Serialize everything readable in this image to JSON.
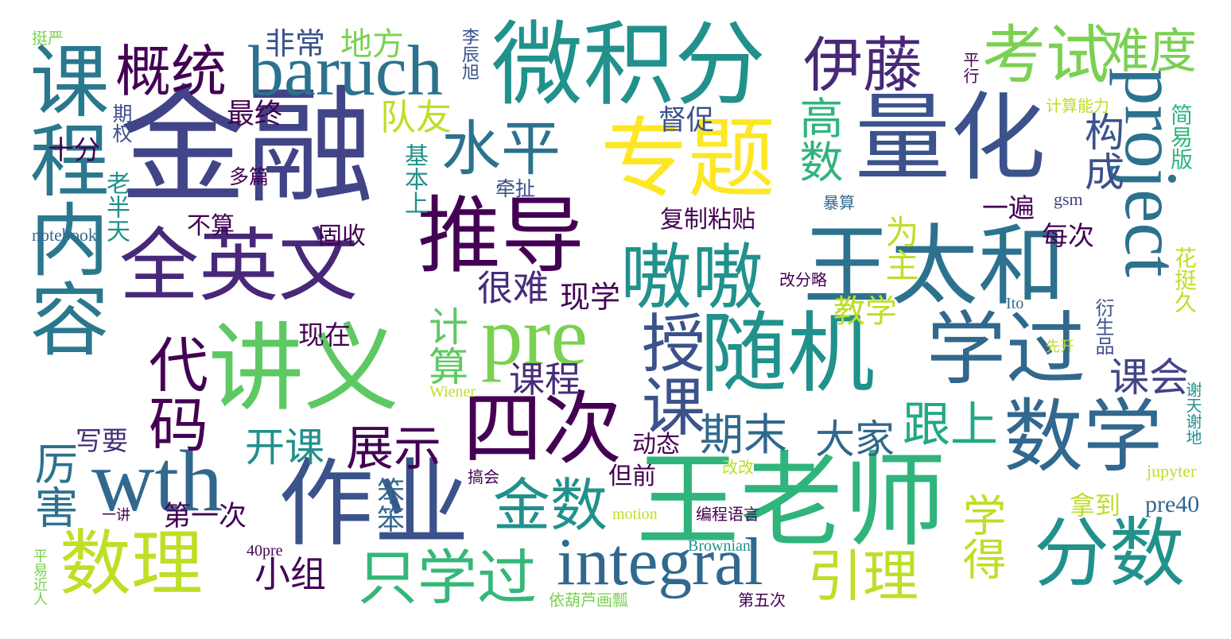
{
  "words": [
    {
      "text": "金融",
      "color": "#414487"
    },
    {
      "text": "量化",
      "color": "#3b528b"
    },
    {
      "text": "王老师",
      "color": "#2fb47c"
    },
    {
      "text": "微积分",
      "color": "#21918c"
    },
    {
      "text": "专题",
      "color": "#fde725"
    },
    {
      "text": "讲义",
      "color": "#5ec962"
    },
    {
      "text": "作业",
      "color": "#3b528b"
    },
    {
      "text": "推导",
      "color": "#440154"
    },
    {
      "text": "随机",
      "color": "#21918c"
    },
    {
      "text": "全英文",
      "color": "#482878"
    },
    {
      "text": "pre",
      "color": "#7ad151"
    },
    {
      "text": "project",
      "color": "#2c728e"
    },
    {
      "text": "wth",
      "color": "#31688e"
    },
    {
      "text": "数学",
      "color": "#31688e"
    },
    {
      "text": "分数",
      "color": "#21918c"
    },
    {
      "text": "课程内容",
      "color": "#2a788e"
    },
    {
      "text": "baruch",
      "color": "#2c728e"
    },
    {
      "text": "考试",
      "color": "#7ad151"
    },
    {
      "text": "王太和",
      "color": "#2c728e"
    },
    {
      "text": "数理",
      "color": "#bddf26"
    },
    {
      "text": "四次",
      "color": "#440154"
    },
    {
      "text": "integral",
      "color": "#31688e"
    },
    {
      "text": "学过",
      "color": "#31688e"
    },
    {
      "text": "嗷嗷",
      "color": "#21918c"
    },
    {
      "text": "伊藤",
      "color": "#482878"
    },
    {
      "text": "授课",
      "color": "#3b528b"
    },
    {
      "text": "水平",
      "color": "#2c728e"
    },
    {
      "text": "代码",
      "color": "#440154"
    },
    {
      "text": "只学过",
      "color": "#35b779"
    },
    {
      "text": "金数",
      "color": "#21918c"
    },
    {
      "text": "概统",
      "color": "#440154"
    },
    {
      "text": "引理",
      "color": "#bddf26"
    },
    {
      "text": "难度",
      "color": "#7ad151"
    },
    {
      "text": "跟上",
      "color": "#22a884"
    },
    {
      "text": "展示",
      "color": "#440154"
    },
    {
      "text": "期末",
      "color": "#31688e"
    },
    {
      "text": "大家",
      "color": "#31688e"
    },
    {
      "text": "厉害",
      "color": "#2c728e"
    },
    {
      "text": "学得",
      "color": "#bddf26"
    },
    {
      "text": "高数",
      "color": "#2fb47c"
    },
    {
      "text": "构成",
      "color": "#3b528b"
    },
    {
      "text": "计算",
      "color": "#5ec962"
    },
    {
      "text": "开课",
      "color": "#21918c"
    },
    {
      "text": "课会",
      "color": "#414487"
    },
    {
      "text": "很难",
      "color": "#472c7a"
    },
    {
      "text": "课程",
      "color": "#472c7a"
    },
    {
      "text": "队友",
      "color": "#bddf26"
    },
    {
      "text": "小组",
      "color": "#440154"
    },
    {
      "text": "地方",
      "color": "#7ad151"
    },
    {
      "text": "非常",
      "color": "#3b528b"
    },
    {
      "text": "教学",
      "color": "#bddf26"
    },
    {
      "text": "现学",
      "color": "#440154"
    },
    {
      "text": "为主",
      "color": "#bddf26"
    },
    {
      "text": "拿到",
      "color": "#bddf26"
    },
    {
      "text": "督促",
      "color": "#3b528b"
    },
    {
      "text": "笨笨",
      "color": "#31688e"
    },
    {
      "text": "第一次",
      "color": "#440154"
    },
    {
      "text": "最终",
      "color": "#440154"
    },
    {
      "text": "现在",
      "color": "#440154"
    },
    {
      "text": "写要",
      "color": "#472c7a"
    },
    {
      "text": "十分",
      "color": "#440154"
    },
    {
      "text": "每次",
      "color": "#440154"
    },
    {
      "text": "一遍",
      "color": "#440154"
    },
    {
      "text": "不算",
      "color": "#440154"
    },
    {
      "text": "固收",
      "color": "#440154"
    },
    {
      "text": "复制粘贴",
      "color": "#440154"
    },
    {
      "text": "动态",
      "color": "#440154"
    },
    {
      "text": "但前",
      "color": "#440154"
    },
    {
      "text": "多篇",
      "color": "#440154"
    },
    {
      "text": "牵扯",
      "color": "#3b528b"
    },
    {
      "text": "pre40",
      "color": "#31688e"
    },
    {
      "text": "基本上",
      "color": "#21918c"
    },
    {
      "text": "老半天",
      "color": "#21918c"
    },
    {
      "text": "期权",
      "color": "#3b528b"
    },
    {
      "text": "李辰旭",
      "color": "#3b528b"
    },
    {
      "text": "平行",
      "color": "#440154"
    },
    {
      "text": "简易版",
      "color": "#2fb47c"
    },
    {
      "text": "计算能力",
      "color": "#bddf26"
    },
    {
      "text": "花挺久",
      "color": "#bddf26"
    },
    {
      "text": "衍生品",
      "color": "#3b528b"
    },
    {
      "text": "改分略",
      "color": "#440154"
    },
    {
      "text": "gsm",
      "color": "#414487"
    },
    {
      "text": "暴算",
      "color": "#31688e"
    },
    {
      "text": "notebook",
      "color": "#31688e"
    },
    {
      "text": "挺严",
      "color": "#7ad151"
    },
    {
      "text": "Wiener",
      "color": "#bddf26"
    },
    {
      "text": "先开",
      "color": "#bddf26"
    },
    {
      "text": "Ito",
      "color": "#31688e"
    },
    {
      "text": "改改",
      "color": "#bddf26"
    },
    {
      "text": "jupyter",
      "color": "#bddf26"
    },
    {
      "text": "谢天谢地",
      "color": "#21918c"
    },
    {
      "text": "搞会",
      "color": "#440154"
    },
    {
      "text": "motion",
      "color": "#bddf26"
    },
    {
      "text": "编程语言",
      "color": "#440154"
    },
    {
      "text": "一讲",
      "color": "#440154"
    },
    {
      "text": "40pre",
      "color": "#440154"
    },
    {
      "text": "Brownian",
      "color": "#21918c"
    },
    {
      "text": "平易近人",
      "color": "#7ad151"
    },
    {
      "text": "依葫芦画瓢",
      "color": "#7ad151"
    },
    {
      "text": "第五次",
      "color": "#440154"
    }
  ]
}
